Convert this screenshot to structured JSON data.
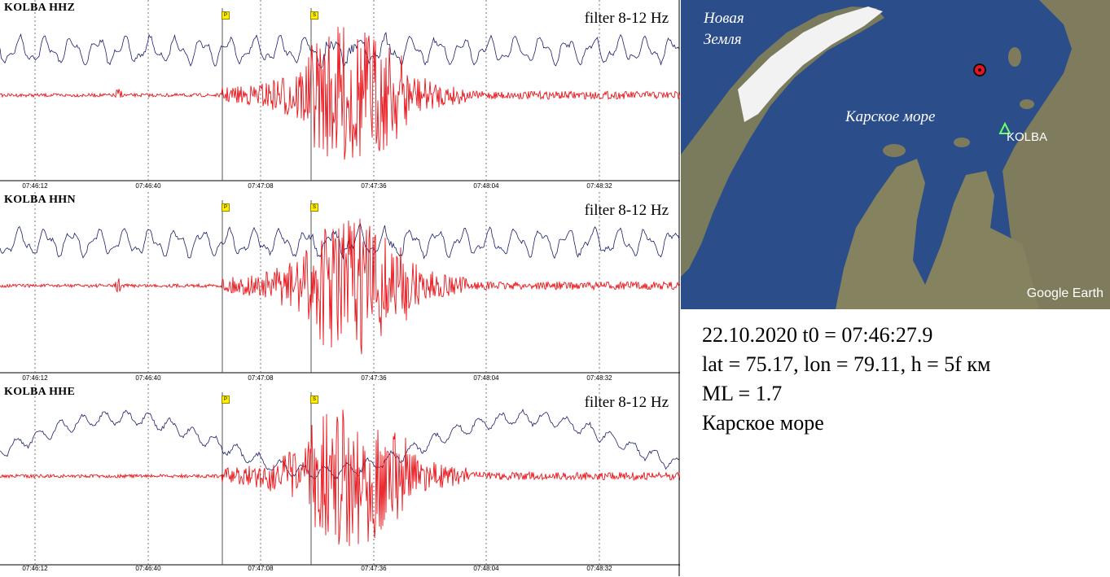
{
  "panels": [
    {
      "station": "KOLBA HHZ",
      "filter": "filter 8-12 Hz",
      "phase_p": "P",
      "phase_s": "S",
      "time_ticks": [
        "07:46:12",
        "07:46:40",
        "07:47:08",
        "07:47:36",
        "07:48:04",
        "07:48:32"
      ]
    },
    {
      "station": "KOLBA HHN",
      "filter": "filter 8-12 Hz",
      "phase_p": "P",
      "phase_s": "S",
      "time_ticks": [
        "07:46:12",
        "07:46:40",
        "07:47:08",
        "07:47:36",
        "07:48:04",
        "07:48:32"
      ]
    },
    {
      "station": "KOLBA HHE",
      "filter": "filter 8-12 Hz",
      "phase_p": "P",
      "phase_s": "S",
      "time_ticks": [
        "07:46:12",
        "07:46:40",
        "07:47:08",
        "07:47:36",
        "07:48:04",
        "07:48:32"
      ]
    }
  ],
  "map": {
    "island_label_1": "Новая",
    "island_label_2": "Земля",
    "sea_label": "Карское море",
    "station_label": "KOLBA",
    "brand": "Google Earth"
  },
  "info": {
    "line1": "22.10.2020 t0 = 07:46:27.9",
    "line2": "lat = 75.17, lon = 79.11, h = 5f км",
    "line3": "ML = 1.7",
    "line4": "Карское море"
  },
  "colors": {
    "filtered_trace": "#e8161c",
    "raw_trace": "#1a1f6b",
    "sea": "#2b4d8a",
    "land": "#7a7b5c",
    "glacier": "#f2f2f2"
  }
}
